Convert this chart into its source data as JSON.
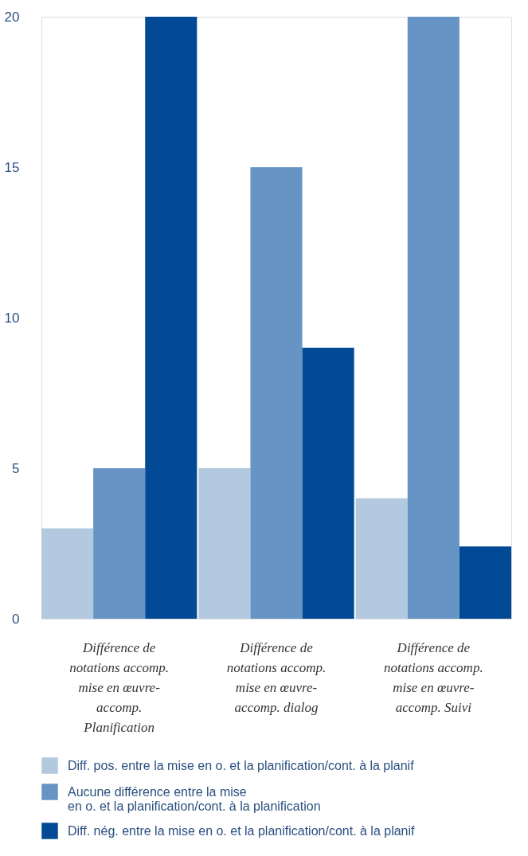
{
  "chart_data": {
    "type": "bar",
    "categories": [
      "Différence de\nnotations accomp.\nmise en œuvre-\naccomp.\nPlanification",
      "Différence de\nnotations accomp.\nmise en œuvre-\naccomp. dialog",
      "Différence de\nnotations accomp.\nmise en œuvre-\naccomp. Suivi"
    ],
    "series": [
      {
        "name": "Diff. pos. entre la mise en o. et la planification/cont. à la planif",
        "color": "#b3c9df",
        "values": [
          3,
          5,
          4
        ]
      },
      {
        "name": "Aucune différence entre la mise\nen o. et la planification/cont. à la planification",
        "color": "#6694c4",
        "values": [
          5,
          15,
          20
        ]
      },
      {
        "name": "Diff. nég. entre la mise en o. et la planification/cont. à la planif",
        "color": "#034a96",
        "values": [
          20,
          9,
          2.4
        ]
      }
    ],
    "ylim": [
      0,
      20
    ],
    "yticks": [
      0,
      5,
      10,
      15,
      20
    ],
    "grid": false,
    "legend": "bottom"
  }
}
